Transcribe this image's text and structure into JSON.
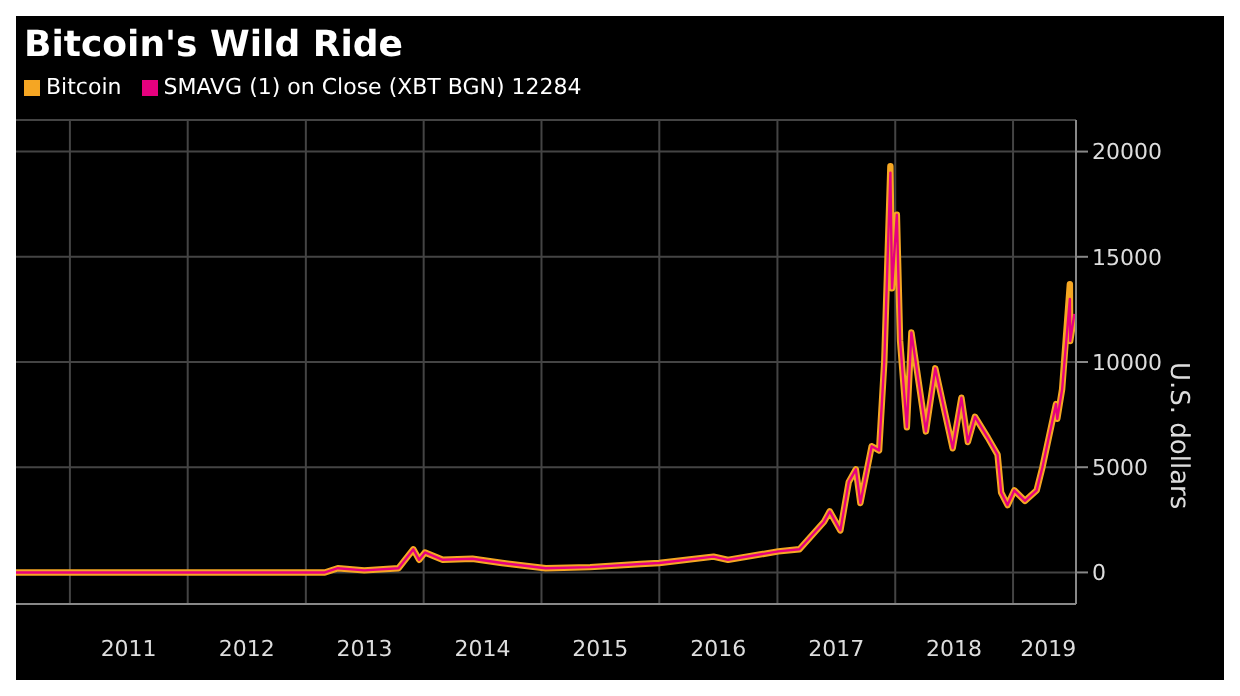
{
  "chart_data": {
    "type": "line",
    "title": "Bitcoin's Wild Ride",
    "ylabel": "U.S. dollars",
    "x": [
      "2010-07-18",
      "2011-06-08",
      "2012-06-01",
      "2013-03-01",
      "2013-04-10",
      "2013-07-01",
      "2013-10-15",
      "2013-11-30",
      "2013-12-18",
      "2014-01-05",
      "2014-03-01",
      "2014-06-01",
      "2014-09-01",
      "2015-01-14",
      "2015-06-01",
      "2015-11-04",
      "2016-01-01",
      "2016-06-17",
      "2016-08-01",
      "2017-01-04",
      "2017-03-10",
      "2017-05-25",
      "2017-06-12",
      "2017-07-15",
      "2017-08-10",
      "2017-09-01",
      "2017-09-15",
      "2017-10-20",
      "2017-11-12",
      "2017-11-28",
      "2017-12-17",
      "2017-12-22",
      "2018-01-06",
      "2018-01-16",
      "2018-02-06",
      "2018-02-20",
      "2018-04-06",
      "2018-05-05",
      "2018-06-28",
      "2018-07-25",
      "2018-08-14",
      "2018-09-05",
      "2018-10-15",
      "2018-11-14",
      "2018-11-25",
      "2018-12-15",
      "2019-01-05",
      "2019-02-07",
      "2019-03-15",
      "2019-04-02",
      "2019-05-14",
      "2019-05-18",
      "2019-06-02",
      "2019-06-26",
      "2019-06-27",
      "2019-07-10"
    ],
    "series": [
      {
        "name": "Bitcoin",
        "color": "#f5a623",
        "values": [
          0,
          0,
          0,
          0,
          200,
          100,
          200,
          1100,
          600,
          950,
          600,
          650,
          450,
          200,
          250,
          400,
          450,
          750,
          600,
          1000,
          1100,
          2400,
          2900,
          2000,
          4300,
          4900,
          3300,
          6000,
          5800,
          10000,
          19300,
          13500,
          17000,
          11000,
          6900,
          11400,
          6700,
          9700,
          5900,
          8300,
          6200,
          7400,
          6400,
          5600,
          3800,
          3200,
          3900,
          3400,
          3900,
          5000,
          8000,
          7300,
          8700,
          13700,
          11000,
          12284
        ]
      },
      {
        "name": "SMAVG (1)  on Close (XBT BGN) 12284",
        "color": "#e6007e",
        "values": [
          0,
          0,
          0,
          0,
          200,
          100,
          200,
          1100,
          600,
          950,
          600,
          650,
          450,
          200,
          250,
          400,
          450,
          750,
          600,
          1000,
          1100,
          2400,
          2900,
          2000,
          4300,
          4900,
          3300,
          6000,
          5800,
          10000,
          19000,
          13500,
          17000,
          11000,
          6900,
          11400,
          6700,
          9700,
          5900,
          8300,
          6200,
          7400,
          6400,
          5600,
          3800,
          3200,
          3900,
          3400,
          3900,
          5000,
          8000,
          7300,
          8700,
          13000,
          11000,
          12284
        ]
      }
    ],
    "xlim": [
      "2010-07-18",
      "2019-07-15"
    ],
    "xticks": [
      {
        "value": "2011-01-01",
        "label": null
      },
      {
        "value": "2011-07-02",
        "label": "2011"
      },
      {
        "value": "2012-01-01",
        "label": null
      },
      {
        "value": "2012-07-02",
        "label": "2012"
      },
      {
        "value": "2013-01-01",
        "label": null
      },
      {
        "value": "2013-07-02",
        "label": "2013"
      },
      {
        "value": "2014-01-01",
        "label": null
      },
      {
        "value": "2014-07-02",
        "label": "2014"
      },
      {
        "value": "2015-01-01",
        "label": null
      },
      {
        "value": "2015-07-02",
        "label": "2015"
      },
      {
        "value": "2016-01-01",
        "label": null
      },
      {
        "value": "2016-07-02",
        "label": "2016"
      },
      {
        "value": "2017-01-01",
        "label": null
      },
      {
        "value": "2017-07-02",
        "label": "2017"
      },
      {
        "value": "2018-01-01",
        "label": null
      },
      {
        "value": "2018-07-02",
        "label": "2018"
      },
      {
        "value": "2019-01-01",
        "label": null
      },
      {
        "value": "2019-04-20",
        "label": "2019"
      }
    ],
    "ylim": [
      -1500,
      21500
    ],
    "yticks": [
      0,
      5000,
      10000,
      15000,
      20000
    ],
    "grid": true,
    "legend": "top left",
    "marker": "none",
    "line_style": "solid"
  }
}
